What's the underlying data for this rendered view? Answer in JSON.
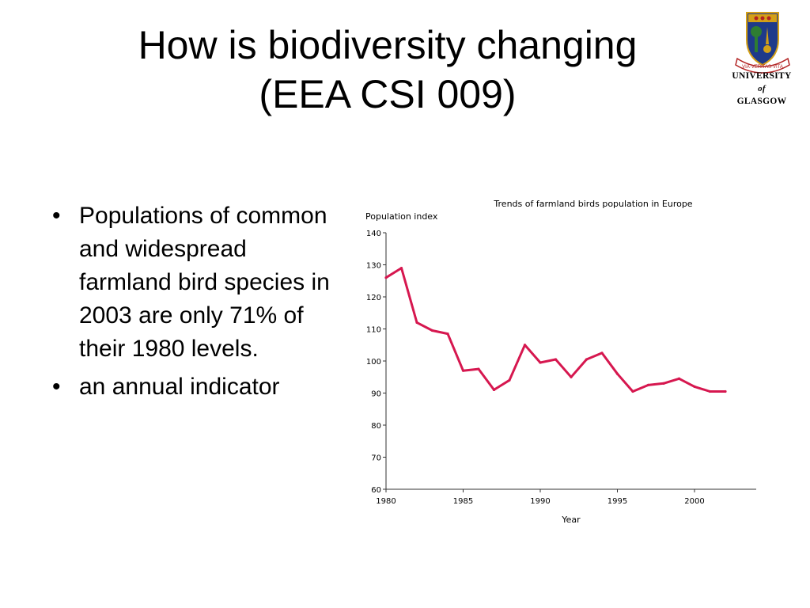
{
  "slide": {
    "title_line1": "How is biodiversity changing",
    "title_line2": "(EEA CSI 009)",
    "bullets": [
      "Populations of common and widespread farmland bird species in 2003 are only 71% of their 1980 levels.",
      "an annual indicator"
    ]
  },
  "logo": {
    "line1": "UNIVERSITY",
    "line2": "of",
    "line3": "GLASGOW",
    "motto": "VIA·VERITAS·VITA",
    "colors": {
      "shield": "#1f3a8a",
      "gold": "#d4a017",
      "red": "#b22222",
      "green": "#2e7d32"
    }
  },
  "chart_data": {
    "type": "line",
    "title": "Trends of farmland birds population in Europe",
    "ylabel": "Population index",
    "xlabel": "Year",
    "ylim": [
      60,
      140
    ],
    "xlim": [
      1980,
      2004
    ],
    "yticks": [
      60,
      70,
      80,
      90,
      100,
      110,
      120,
      130,
      140
    ],
    "xticks": [
      1980,
      1985,
      1990,
      1995,
      2000
    ],
    "grid": false,
    "series": [
      {
        "color": "#d6174f",
        "x": [
          1980,
          1981,
          1982,
          1983,
          1984,
          1985,
          1986,
          1987,
          1988,
          1989,
          1990,
          1991,
          1992,
          1993,
          1994,
          1995,
          1996,
          1997,
          1998,
          1999,
          2000,
          2001,
          2002
        ],
        "y": [
          126,
          129,
          112,
          109.5,
          108.5,
          97,
          97.5,
          91,
          94,
          105,
          99.5,
          100.5,
          95,
          100.5,
          102.5,
          96,
          90.5,
          92.5,
          93,
          94.5,
          92,
          90.5,
          90.5
        ]
      }
    ]
  }
}
